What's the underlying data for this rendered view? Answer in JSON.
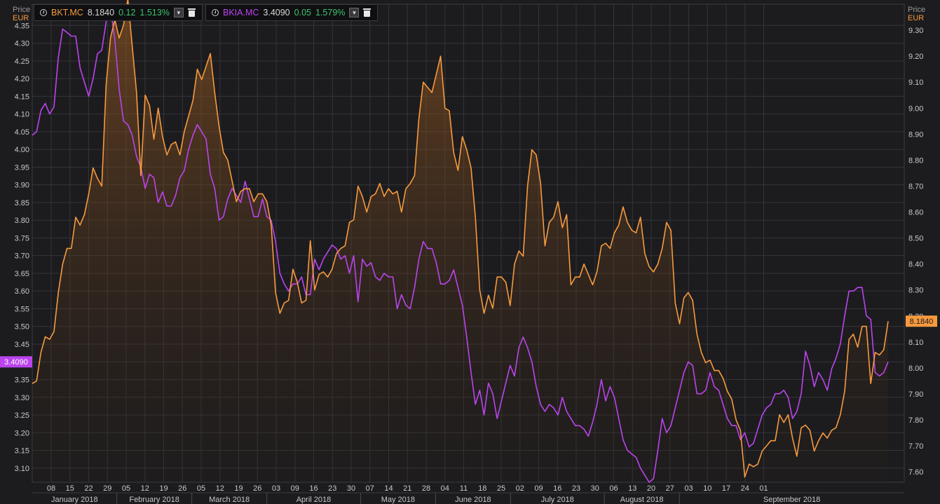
{
  "legend": [
    {
      "symbol": "BKT.MC",
      "price": "8.1840",
      "change": "0.12",
      "pct": "1.513%",
      "color": "#f79a3e"
    },
    {
      "symbol": "BKIA.MC",
      "price": "3.4090",
      "change": "0.05",
      "pct": "1.579%",
      "color": "#bb44ee"
    }
  ],
  "axis_left": {
    "price_label": "Price",
    "currency": "EUR"
  },
  "axis_right": {
    "price_label": "Price",
    "currency": "EUR"
  },
  "icons": [
    "clock-icon",
    "dropdown-icon",
    "trash-icon"
  ],
  "colors": {
    "background": "#1c1c1f",
    "grid": "#34343a",
    "bkt": "#f79a3e",
    "bkia": "#bb44ee",
    "positive": "#3ec46d"
  },
  "chart_data": {
    "type": "line",
    "left_axis": {
      "series": "BKIA.MC",
      "ylim": [
        3.06,
        4.41
      ],
      "ticks": [
        "3.10",
        "3.15",
        "3.20",
        "3.25",
        "3.30",
        "3.35",
        "3.40",
        "3.45",
        "3.50",
        "3.55",
        "3.60",
        "3.65",
        "3.70",
        "3.75",
        "3.80",
        "3.85",
        "3.90",
        "3.95",
        "4.00",
        "4.05",
        "4.10",
        "4.15",
        "4.20",
        "4.25",
        "4.30",
        "4.35"
      ],
      "last_label": "3.4090"
    },
    "right_axis": {
      "series": "BKT.MC",
      "ylim": [
        7.56,
        9.4
      ],
      "ticks": [
        "7.60",
        "7.70",
        "7.80",
        "7.90",
        "8.00",
        "8.10",
        "8.20",
        "8.30",
        "8.40",
        "8.50",
        "8.60",
        "8.70",
        "8.80",
        "8.90",
        "9.00",
        "9.10",
        "9.20",
        "9.30"
      ],
      "last_label": "8.1840"
    },
    "x_day_labels": [
      "08",
      "15",
      "22",
      "29",
      "05",
      "12",
      "19",
      "26",
      "05",
      "12",
      "19",
      "26",
      "03",
      "09",
      "16",
      "23",
      "30",
      "07",
      "14",
      "21",
      "28",
      "04",
      "11",
      "18",
      "25",
      "02",
      "09",
      "16",
      "23",
      "30",
      "06",
      "13",
      "20",
      "27",
      "03",
      "10",
      "17",
      "24",
      "01"
    ],
    "x_month_labels": [
      "January 2018",
      "February 2018",
      "March 2018",
      "April 2018",
      "May 2018",
      "June 2018",
      "July 2018",
      "August 2018",
      "September 2018"
    ],
    "series": [
      {
        "name": "BKT.MC",
        "axis": "right",
        "color": "#f79a3e",
        "values": [
          7.94,
          7.95,
          8.06,
          8.12,
          8.11,
          8.14,
          8.29,
          8.4,
          8.46,
          8.46,
          8.58,
          8.55,
          8.59,
          8.67,
          8.77,
          8.73,
          8.7,
          9.09,
          9.27,
          9.34,
          9.27,
          9.32,
          9.42,
          9.24,
          9.06,
          8.74,
          9.05,
          9.01,
          8.88,
          9.0,
          8.89,
          8.82,
          8.86,
          8.87,
          8.82,
          8.91,
          8.97,
          9.03,
          9.15,
          9.11,
          9.16,
          9.21,
          9.06,
          8.93,
          8.83,
          8.8,
          8.72,
          8.64,
          8.68,
          8.69,
          8.69,
          8.64,
          8.67,
          8.67,
          8.64,
          8.55,
          8.29,
          8.21,
          8.25,
          8.26,
          8.38,
          8.33,
          8.25,
          8.26,
          8.49,
          8.3,
          8.36,
          8.37,
          8.35,
          8.38,
          8.44,
          8.46,
          8.47,
          8.56,
          8.57,
          8.7,
          8.66,
          8.6,
          8.66,
          8.67,
          8.71,
          8.66,
          8.69,
          8.67,
          8.68,
          8.6,
          8.69,
          8.71,
          8.74,
          8.96,
          9.1,
          9.08,
          9.06,
          9.13,
          9.2,
          9.0,
          8.99,
          8.83,
          8.76,
          8.89,
          8.84,
          8.77,
          8.58,
          8.3,
          8.21,
          8.28,
          8.23,
          8.35,
          8.35,
          8.33,
          8.24,
          8.4,
          8.45,
          8.43,
          8.7,
          8.84,
          8.82,
          8.71,
          8.47,
          8.56,
          8.58,
          8.64,
          8.54,
          8.59,
          8.32,
          8.35,
          8.35,
          8.4,
          8.36,
          8.32,
          8.37,
          8.47,
          8.48,
          8.46,
          8.52,
          8.55,
          8.62,
          8.56,
          8.53,
          8.52,
          8.58,
          8.44,
          8.39,
          8.37,
          8.4,
          8.46,
          8.56,
          8.53,
          8.25,
          8.17,
          8.27,
          8.29,
          8.26,
          8.13,
          8.06,
          8.02,
          8.03,
          7.99,
          7.99,
          7.96,
          7.91,
          7.88,
          7.8,
          7.76,
          7.58,
          7.63,
          7.62,
          7.63,
          7.68,
          7.7,
          7.72,
          7.72,
          7.82,
          7.79,
          7.82,
          7.73,
          7.66,
          7.77,
          7.78,
          7.76,
          7.68,
          7.72,
          7.75,
          7.73,
          7.76,
          7.77,
          7.82,
          7.91,
          8.11,
          8.13,
          8.08,
          8.16,
          8.16,
          7.94,
          8.06,
          8.05,
          8.07,
          8.18
        ]
      },
      {
        "name": "BKIA.MC",
        "axis": "left",
        "color": "#bb44ee",
        "values": [
          4.04,
          4.05,
          4.11,
          4.13,
          4.1,
          4.12,
          4.26,
          4.34,
          4.33,
          4.32,
          4.32,
          4.23,
          4.19,
          4.15,
          4.2,
          4.27,
          4.28,
          4.36,
          4.4,
          4.31,
          4.17,
          4.08,
          4.07,
          4.04,
          3.98,
          3.95,
          3.89,
          3.93,
          3.92,
          3.85,
          3.88,
          3.84,
          3.84,
          3.87,
          3.92,
          3.94,
          4.0,
          4.04,
          4.07,
          4.05,
          4.03,
          3.93,
          3.89,
          3.8,
          3.81,
          3.86,
          3.89,
          3.87,
          3.85,
          3.91,
          3.86,
          3.81,
          3.81,
          3.86,
          3.81,
          3.8,
          3.74,
          3.65,
          3.62,
          3.6,
          3.62,
          3.62,
          3.64,
          3.59,
          3.59,
          3.69,
          3.66,
          3.69,
          3.71,
          3.73,
          3.72,
          3.69,
          3.7,
          3.65,
          3.7,
          3.57,
          3.69,
          3.67,
          3.68,
          3.64,
          3.63,
          3.65,
          3.64,
          3.64,
          3.55,
          3.59,
          3.56,
          3.55,
          3.61,
          3.69,
          3.74,
          3.72,
          3.72,
          3.68,
          3.62,
          3.62,
          3.63,
          3.66,
          3.61,
          3.56,
          3.47,
          3.37,
          3.28,
          3.32,
          3.25,
          3.34,
          3.31,
          3.24,
          3.29,
          3.34,
          3.39,
          3.36,
          3.44,
          3.47,
          3.44,
          3.4,
          3.33,
          3.28,
          3.26,
          3.28,
          3.27,
          3.25,
          3.3,
          3.26,
          3.24,
          3.22,
          3.22,
          3.21,
          3.19,
          3.23,
          3.28,
          3.35,
          3.29,
          3.33,
          3.3,
          3.24,
          3.18,
          3.15,
          3.14,
          3.13,
          3.1,
          3.08,
          3.06,
          3.07,
          3.15,
          3.24,
          3.2,
          3.22,
          3.27,
          3.32,
          3.37,
          3.4,
          3.39,
          3.31,
          3.31,
          3.32,
          3.37,
          3.33,
          3.32,
          3.28,
          3.24,
          3.22,
          3.22,
          3.18,
          3.2,
          3.16,
          3.17,
          3.21,
          3.25,
          3.27,
          3.28,
          3.31,
          3.31,
          3.32,
          3.3,
          3.24,
          3.26,
          3.31,
          3.43,
          3.39,
          3.33,
          3.37,
          3.35,
          3.32,
          3.38,
          3.41,
          3.45,
          3.53,
          3.6,
          3.6,
          3.61,
          3.61,
          3.53,
          3.52,
          3.37,
          3.36,
          3.37,
          3.4
        ]
      }
    ]
  }
}
